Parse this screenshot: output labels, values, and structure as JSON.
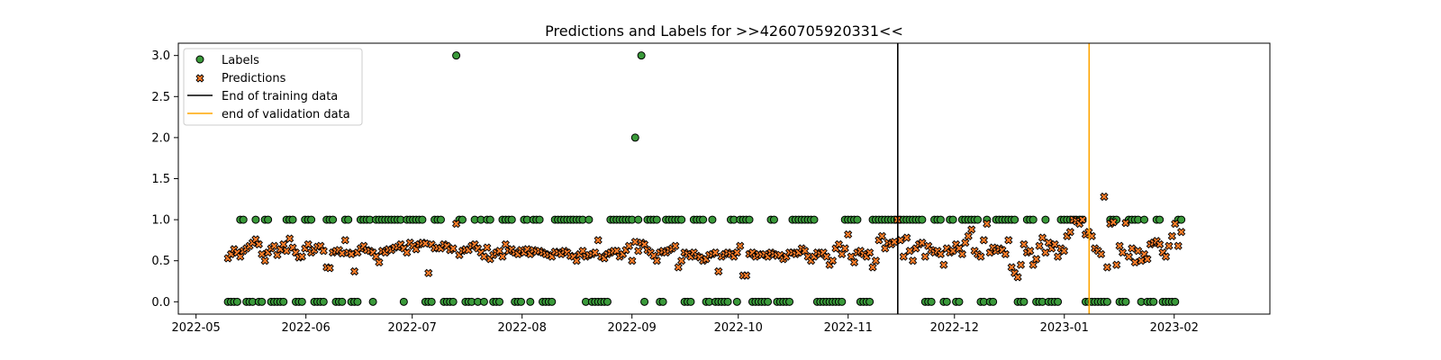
{
  "chart_data": {
    "type": "scatter",
    "title": "Predictions and Labels for >>4260705920331<<",
    "xlabel": "",
    "ylabel": "",
    "x_axis": "date",
    "xlim": [
      "2022-04-26",
      "2023-02-28"
    ],
    "ylim": [
      -0.15,
      3.15
    ],
    "grid": false,
    "legend_position": "top-left",
    "x_ticks": [
      "2022-05",
      "2022-06",
      "2022-07",
      "2022-08",
      "2022-09",
      "2022-10",
      "2022-11",
      "2022-12",
      "2023-01",
      "2023-02"
    ],
    "x_tick_dates": [
      "2022-05-01",
      "2022-06-01",
      "2022-07-01",
      "2022-08-01",
      "2022-09-01",
      "2022-10-01",
      "2022-11-01",
      "2022-12-01",
      "2023-01-01",
      "2023-02-01"
    ],
    "y_ticks": [
      "0.0",
      "0.5",
      "1.0",
      "1.5",
      "2.0",
      "2.5",
      "3.0"
    ],
    "y_tick_values": [
      0,
      0.5,
      1,
      1.5,
      2,
      2.5,
      3
    ],
    "start_date": "2022-05-10",
    "end_date": "2023-02-03",
    "series": [
      {
        "name": "Labels",
        "marker": "circle",
        "color": "#3a9a3a",
        "edge_color": "#000000",
        "values": [
          0,
          0,
          0,
          0,
          1,
          1,
          0,
          0,
          0,
          1,
          0,
          0,
          1,
          1,
          0,
          0,
          0,
          0,
          0,
          1,
          1,
          1,
          0,
          0,
          0,
          1,
          1,
          1,
          0,
          0,
          0,
          0,
          1,
          1,
          1,
          0,
          0,
          0,
          1,
          1,
          0,
          0,
          0,
          1,
          1,
          1,
          1,
          0,
          1,
          1,
          1,
          1,
          1,
          1,
          1,
          1,
          1,
          0,
          1,
          1,
          1,
          1,
          1,
          1,
          0,
          0,
          0,
          1,
          1,
          1,
          0,
          0,
          0,
          0,
          3,
          1,
          1,
          0,
          0,
          0,
          1,
          0,
          1,
          0,
          1,
          1,
          0,
          0,
          0,
          1,
          1,
          1,
          1,
          0,
          0,
          0,
          1,
          1,
          0,
          1,
          1,
          1,
          0,
          0,
          0,
          0,
          1,
          1,
          1,
          1,
          1,
          1,
          1,
          1,
          1,
          1,
          0,
          1,
          0,
          0,
          0,
          0,
          0,
          0,
          1,
          1,
          1,
          1,
          1,
          1,
          1,
          1,
          2,
          1,
          3,
          0,
          1,
          1,
          1,
          1,
          0,
          0,
          1,
          1,
          1,
          1,
          1,
          1,
          0,
          0,
          0,
          1,
          1,
          1,
          1,
          0,
          0,
          1,
          0,
          0,
          0,
          0,
          0,
          1,
          1,
          0,
          1,
          1,
          1,
          1,
          0,
          0,
          0,
          0,
          0,
          0,
          1,
          1,
          0,
          0,
          0,
          0,
          0,
          1,
          1,
          1,
          1,
          1,
          1,
          1,
          1,
          0,
          0,
          0,
          0,
          0,
          0,
          0,
          0,
          0,
          1,
          1,
          1,
          1,
          1,
          0,
          0,
          0,
          0,
          1,
          1,
          1,
          1,
          1,
          1,
          1,
          1,
          1,
          1,
          1,
          1,
          1,
          1,
          1,
          1,
          1,
          0,
          0,
          0,
          1,
          1,
          1,
          0,
          0,
          1,
          1,
          0,
          0,
          1,
          1,
          1,
          1,
          1,
          1,
          0,
          0,
          1,
          0,
          0,
          1,
          1,
          1,
          1,
          1,
          1,
          1,
          0,
          0,
          0,
          1,
          1,
          1,
          0,
          0,
          0,
          1,
          0,
          0,
          0,
          0,
          1,
          1,
          1,
          1,
          1,
          1,
          1,
          1,
          0,
          0,
          0,
          0,
          0,
          0,
          0,
          0,
          1,
          1,
          1,
          0,
          0,
          0,
          1,
          1,
          1,
          1,
          0,
          1,
          0,
          0,
          0,
          1,
          1,
          0,
          0,
          0,
          0,
          0,
          1,
          1
        ]
      },
      {
        "name": "Predictions",
        "marker": "x",
        "color": "#ff7f2a",
        "edge_color": "#000000",
        "values": [
          0.53,
          0.58,
          0.64,
          0.6,
          0.55,
          0.62,
          0.65,
          0.68,
          0.72,
          0.76,
          0.7,
          0.58,
          0.5,
          0.6,
          0.65,
          0.68,
          0.57,
          0.64,
          0.7,
          0.62,
          0.77,
          0.66,
          0.6,
          0.54,
          0.55,
          0.65,
          0.7,
          0.6,
          0.63,
          0.67,
          0.68,
          0.62,
          0.42,
          0.41,
          0.6,
          0.62,
          0.63,
          0.59,
          0.75,
          0.6,
          0.58,
          0.37,
          0.6,
          0.65,
          0.68,
          0.63,
          0.62,
          0.6,
          0.55,
          0.48,
          0.62,
          0.6,
          0.64,
          0.63,
          0.66,
          0.67,
          0.7,
          0.65,
          0.6,
          0.72,
          0.68,
          0.64,
          0.7,
          0.72,
          0.71,
          0.35,
          0.7,
          0.65,
          0.66,
          0.65,
          0.7,
          0.68,
          0.63,
          0.65,
          0.95,
          0.57,
          0.62,
          0.64,
          0.63,
          0.68,
          0.7,
          0.65,
          0.6,
          0.55,
          0.66,
          0.52,
          0.57,
          0.6,
          0.62,
          0.55,
          0.7,
          0.62,
          0.64,
          0.6,
          0.58,
          0.63,
          0.6,
          0.64,
          0.58,
          0.63,
          0.61,
          0.62,
          0.6,
          0.58,
          0.57,
          0.55,
          0.61,
          0.6,
          0.58,
          0.62,
          0.6,
          0.56,
          0.55,
          0.5,
          0.58,
          0.62,
          0.55,
          0.57,
          0.58,
          0.6,
          0.75,
          0.55,
          0.53,
          0.58,
          0.6,
          0.62,
          0.62,
          0.55,
          0.58,
          0.63,
          0.68,
          0.5,
          0.73,
          0.62,
          0.72,
          0.7,
          0.63,
          0.6,
          0.56,
          0.5,
          0.6,
          0.62,
          0.6,
          0.63,
          0.65,
          0.68,
          0.42,
          0.5,
          0.6,
          0.58,
          0.55,
          0.6,
          0.56,
          0.54,
          0.5,
          0.52,
          0.57,
          0.58,
          0.6,
          0.37,
          0.55,
          0.58,
          0.6,
          0.58,
          0.55,
          0.6,
          0.68,
          0.32,
          0.32,
          0.58,
          0.6,
          0.55,
          0.58,
          0.57,
          0.58,
          0.55,
          0.6,
          0.58,
          0.56,
          0.57,
          0.52,
          0.55,
          0.6,
          0.6,
          0.58,
          0.6,
          0.65,
          0.62,
          0.55,
          0.5,
          0.55,
          0.6,
          0.58,
          0.6,
          0.55,
          0.45,
          0.5,
          0.65,
          0.7,
          0.58,
          0.65,
          0.82,
          0.55,
          0.48,
          0.6,
          0.62,
          0.58,
          0.55,
          0.6,
          0.42,
          0.5,
          0.75,
          0.8,
          0.65,
          0.72,
          0.7,
          0.73,
          1.0,
          0.75,
          0.55,
          0.78,
          0.62,
          0.5,
          0.65,
          0.7,
          0.72,
          0.55,
          0.68,
          0.63,
          0.6,
          0.62,
          0.58,
          0.45,
          0.65,
          0.6,
          0.62,
          0.7,
          0.65,
          0.58,
          0.72,
          0.8,
          0.88,
          0.62,
          0.58,
          0.55,
          0.75,
          0.95,
          0.6,
          0.66,
          0.62,
          0.65,
          0.63,
          0.58,
          0.75,
          0.42,
          0.35,
          0.3,
          0.45,
          0.7,
          0.6,
          0.62,
          0.45,
          0.52,
          0.68,
          0.78,
          0.6,
          0.72,
          0.65,
          0.7,
          0.55,
          0.65,
          0.62,
          0.8,
          0.85,
          1.0,
          0.98,
          0.95,
          1.0,
          0.82,
          0.85,
          0.8,
          0.65,
          0.62,
          0.58,
          1.28,
          0.42,
          0.95,
          0.97,
          0.45,
          0.68,
          0.6,
          0.96,
          0.55,
          0.65,
          0.48,
          0.62,
          0.5,
          0.58,
          0.52,
          0.7,
          0.72,
          0.74,
          0.7,
          0.6,
          0.55,
          0.68,
          0.8,
          0.95,
          0.68,
          0.85
        ]
      }
    ],
    "vlines": [
      {
        "name": "End of training data",
        "date": "2022-11-15",
        "color": "#000000"
      },
      {
        "name": "end of validation data",
        "date": "2023-01-08",
        "color": "#ffa500"
      }
    ]
  }
}
